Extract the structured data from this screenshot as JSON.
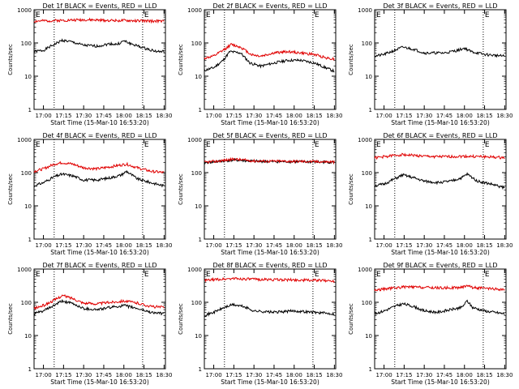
{
  "figure": {
    "xlabel": "Start Time (15-Mar-10 16:53:20)",
    "ylabel": "Counts/sec",
    "xticks": [
      "17:00",
      "17:15",
      "17:30",
      "17:45",
      "18:00",
      "18:15",
      "18:30"
    ],
    "yticks": [
      "1",
      "10",
      "100",
      "1000"
    ],
    "e_marker": "E",
    "colors": {
      "events": "#000000",
      "lld": "#e00000"
    }
  },
  "chart_data": [
    {
      "type": "line",
      "title": "Det 1f BLACK = Events, RED = LLD",
      "ylim": [
        1,
        1000
      ],
      "yscale": "log",
      "series": [
        {
          "name": "Events",
          "color": "#000000",
          "x": [
            "16:53",
            "17:00",
            "17:08",
            "17:14",
            "17:20",
            "17:30",
            "17:40",
            "17:50",
            "17:55",
            "18:00",
            "18:05",
            "18:15",
            "18:25",
            "18:30"
          ],
          "values": [
            55,
            60,
            90,
            120,
            110,
            85,
            80,
            95,
            90,
            115,
            95,
            70,
            55,
            55
          ]
        },
        {
          "name": "LLD",
          "color": "#e00000",
          "x": [
            "16:53",
            "17:00",
            "17:15",
            "17:30",
            "17:45",
            "18:00",
            "18:15",
            "18:30"
          ],
          "values": [
            450,
            460,
            480,
            500,
            480,
            470,
            460,
            450
          ]
        }
      ]
    },
    {
      "type": "line",
      "title": "Det 2f BLACK = Events, RED = LLD",
      "ylim": [
        1,
        1000
      ],
      "yscale": "log",
      "series": [
        {
          "name": "Events",
          "color": "#000000",
          "x": [
            "16:53",
            "17:00",
            "17:07",
            "17:12",
            "17:20",
            "17:27",
            "17:35",
            "17:45",
            "17:55",
            "18:05",
            "18:15",
            "18:25",
            "18:30"
          ],
          "values": [
            15,
            18,
            30,
            55,
            50,
            25,
            20,
            25,
            30,
            30,
            25,
            17,
            14
          ]
        },
        {
          "name": "LLD",
          "color": "#e00000",
          "x": [
            "16:53",
            "17:00",
            "17:07",
            "17:13",
            "17:20",
            "17:28",
            "17:35",
            "17:45",
            "17:55",
            "18:05",
            "18:15",
            "18:25",
            "18:30"
          ],
          "values": [
            35,
            40,
            60,
            90,
            75,
            45,
            40,
            50,
            55,
            50,
            45,
            35,
            33
          ]
        }
      ]
    },
    {
      "type": "line",
      "title": "Det 3f BLACK = Events, RED = LLD",
      "ylim": [
        1,
        1000
      ],
      "yscale": "log",
      "series": [
        {
          "name": "Events",
          "color": "#000000",
          "x": [
            "16:53",
            "17:00",
            "17:08",
            "17:14",
            "17:22",
            "17:30",
            "17:45",
            "17:55",
            "18:00",
            "18:05",
            "18:15",
            "18:30"
          ],
          "values": [
            40,
            45,
            60,
            75,
            65,
            50,
            50,
            60,
            70,
            55,
            45,
            40
          ]
        }
      ]
    },
    {
      "type": "line",
      "title": "Det 4f BLACK = Events, RED = LLD",
      "ylim": [
        1,
        1000
      ],
      "yscale": "log",
      "series": [
        {
          "name": "Events",
          "color": "#000000",
          "x": [
            "16:53",
            "17:00",
            "17:08",
            "17:14",
            "17:22",
            "17:30",
            "17:40",
            "17:50",
            "17:58",
            "18:02",
            "18:10",
            "18:20",
            "18:30"
          ],
          "values": [
            40,
            50,
            75,
            90,
            80,
            60,
            60,
            70,
            85,
            110,
            65,
            50,
            40
          ]
        },
        {
          "name": "LLD",
          "color": "#e00000",
          "x": [
            "16:53",
            "17:00",
            "17:08",
            "17:14",
            "17:22",
            "17:30",
            "17:40",
            "17:50",
            "17:58",
            "18:02",
            "18:10",
            "18:20",
            "18:30"
          ],
          "values": [
            110,
            130,
            180,
            200,
            180,
            140,
            130,
            150,
            170,
            180,
            140,
            110,
            100
          ]
        }
      ]
    },
    {
      "type": "line",
      "title": "Det 5f BLACK = Events, RED = LLD",
      "ylim": [
        1,
        1000
      ],
      "yscale": "log",
      "series": [
        {
          "name": "Events",
          "color": "#000000",
          "x": [
            "16:53",
            "17:00",
            "17:15",
            "17:30",
            "17:45",
            "18:00",
            "18:15",
            "18:30"
          ],
          "values": [
            200,
            210,
            240,
            220,
            215,
            215,
            210,
            205
          ]
        },
        {
          "name": "LLD",
          "color": "#e00000",
          "x": [
            "16:53",
            "17:00",
            "17:15",
            "17:30",
            "17:45",
            "18:00",
            "18:15",
            "18:30"
          ],
          "values": [
            205,
            215,
            255,
            225,
            220,
            220,
            215,
            210
          ]
        }
      ]
    },
    {
      "type": "line",
      "title": "Det 6f BLACK = Events, RED = LLD",
      "ylim": [
        1,
        1000
      ],
      "yscale": "log",
      "series": [
        {
          "name": "Events",
          "color": "#000000",
          "x": [
            "16:53",
            "17:00",
            "17:08",
            "17:14",
            "17:22",
            "17:30",
            "17:40",
            "17:50",
            "17:58",
            "18:02",
            "18:10",
            "18:20",
            "18:30"
          ],
          "values": [
            40,
            45,
            65,
            85,
            70,
            55,
            50,
            55,
            70,
            90,
            55,
            45,
            35
          ]
        },
        {
          "name": "LLD",
          "color": "#e00000",
          "x": [
            "16:53",
            "17:00",
            "17:08",
            "17:14",
            "17:22",
            "17:30",
            "17:45",
            "18:00",
            "18:15",
            "18:30"
          ],
          "values": [
            280,
            300,
            330,
            350,
            330,
            310,
            300,
            310,
            300,
            280
          ]
        }
      ]
    },
    {
      "type": "line",
      "title": "Det 7f BLACK = Events, RED = LLD",
      "ylim": [
        1,
        1000
      ],
      "yscale": "log",
      "series": [
        {
          "name": "Events",
          "color": "#000000",
          "x": [
            "16:53",
            "17:00",
            "17:08",
            "17:14",
            "17:22",
            "17:30",
            "17:40",
            "17:50",
            "18:00",
            "18:10",
            "18:20",
            "18:30"
          ],
          "values": [
            45,
            55,
            80,
            110,
            90,
            65,
            60,
            70,
            80,
            65,
            50,
            45
          ]
        },
        {
          "name": "LLD",
          "color": "#e00000",
          "x": [
            "16:53",
            "17:00",
            "17:08",
            "17:14",
            "17:22",
            "17:30",
            "17:40",
            "17:50",
            "18:00",
            "18:10",
            "18:20",
            "18:30"
          ],
          "values": [
            65,
            80,
            115,
            160,
            130,
            95,
            90,
            100,
            110,
            95,
            75,
            70
          ]
        }
      ]
    },
    {
      "type": "line",
      "title": "Det 8f BLACK = Events, RED = LLD",
      "ylim": [
        1,
        1000
      ],
      "yscale": "log",
      "series": [
        {
          "name": "Events",
          "color": "#000000",
          "x": [
            "16:53",
            "17:00",
            "17:08",
            "17:14",
            "17:22",
            "17:30",
            "17:45",
            "18:00",
            "18:15",
            "18:30"
          ],
          "values": [
            40,
            50,
            70,
            85,
            75,
            55,
            50,
            55,
            50,
            45
          ]
        },
        {
          "name": "LLD",
          "color": "#e00000",
          "x": [
            "16:53",
            "17:00",
            "17:15",
            "17:30",
            "17:45",
            "18:00",
            "18:15",
            "18:30"
          ],
          "values": [
            450,
            480,
            520,
            490,
            480,
            470,
            460,
            440
          ]
        }
      ]
    },
    {
      "type": "line",
      "title": "Det 9f BLACK = Events, RED = LLD",
      "ylim": [
        1,
        1000
      ],
      "yscale": "log",
      "series": [
        {
          "name": "Events",
          "color": "#000000",
          "x": [
            "16:53",
            "17:00",
            "17:08",
            "17:14",
            "17:22",
            "17:30",
            "17:40",
            "17:50",
            "17:58",
            "18:02",
            "18:06",
            "18:15",
            "18:30"
          ],
          "values": [
            45,
            55,
            75,
            90,
            75,
            55,
            50,
            60,
            70,
            110,
            70,
            55,
            45
          ]
        },
        {
          "name": "LLD",
          "color": "#e00000",
          "x": [
            "16:53",
            "17:00",
            "17:15",
            "17:30",
            "17:45",
            "17:58",
            "18:02",
            "18:06",
            "18:15",
            "18:30"
          ],
          "values": [
            230,
            250,
            290,
            280,
            270,
            280,
            330,
            280,
            260,
            240
          ]
        }
      ]
    }
  ]
}
